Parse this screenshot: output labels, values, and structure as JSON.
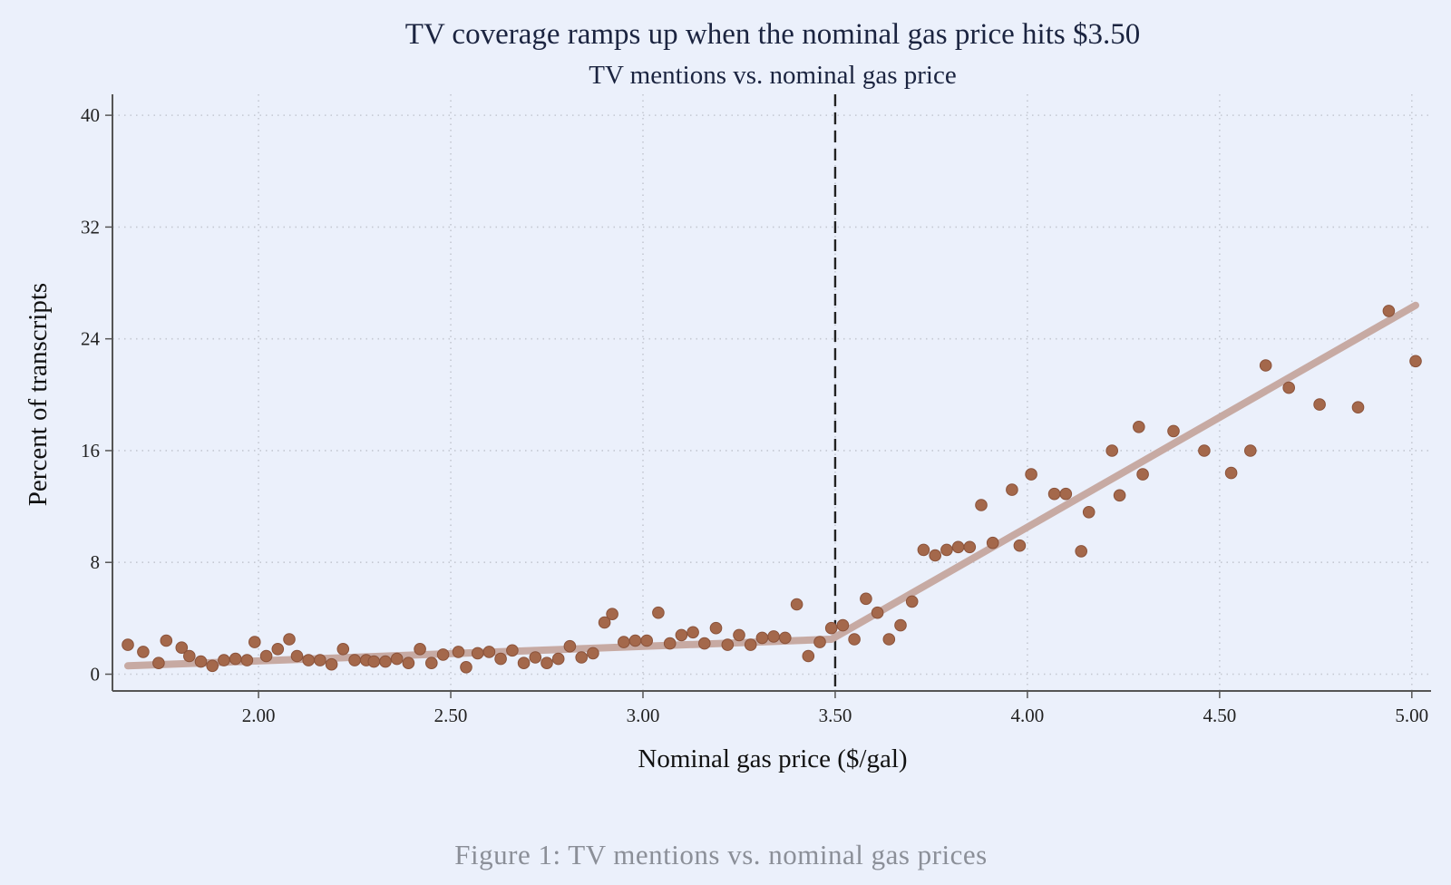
{
  "chart_data": {
    "type": "scatter",
    "title": "TV coverage ramps up when the nominal gas price hits $3.50",
    "subtitle": "TV mentions vs. nominal gas price",
    "xlabel": "Nominal gas price ($/gal)",
    "ylabel": "Percent of transcripts",
    "xlim": [
      1.62,
      5.05
    ],
    "ylim": [
      -1.2,
      41.5
    ],
    "x_ticks": [
      2.0,
      2.5,
      3.0,
      3.5,
      4.0,
      4.5,
      5.0
    ],
    "x_tick_labels": [
      "2.00",
      "2.50",
      "3.00",
      "3.50",
      "4.00",
      "4.50",
      "5.00"
    ],
    "y_ticks": [
      0,
      8,
      16,
      24,
      32,
      40
    ],
    "y_tick_labels": [
      "0",
      "8",
      "16",
      "24",
      "32",
      "40"
    ],
    "grid": true,
    "threshold_x": 3.5,
    "colors": {
      "background": "#ebf0fb",
      "points": "#a4684b",
      "points_edge": "#8a523a",
      "fit_line": "#c7aaa3",
      "threshold_line": "#222222",
      "grid": "#c4c8d2",
      "axis": "#555555"
    },
    "series": [
      {
        "type": "scatter",
        "points": [
          [
            1.66,
            2.1
          ],
          [
            1.7,
            1.6
          ],
          [
            1.74,
            0.8
          ],
          [
            1.76,
            2.4
          ],
          [
            1.8,
            1.9
          ],
          [
            1.82,
            1.3
          ],
          [
            1.85,
            0.9
          ],
          [
            1.88,
            0.6
          ],
          [
            1.91,
            1.0
          ],
          [
            1.94,
            1.1
          ],
          [
            1.97,
            1.0
          ],
          [
            1.99,
            2.3
          ],
          [
            2.02,
            1.3
          ],
          [
            2.05,
            1.8
          ],
          [
            2.08,
            2.5
          ],
          [
            2.1,
            1.3
          ],
          [
            2.13,
            1.0
          ],
          [
            2.16,
            1.0
          ],
          [
            2.19,
            0.7
          ],
          [
            2.22,
            1.8
          ],
          [
            2.25,
            1.0
          ],
          [
            2.28,
            1.0
          ],
          [
            2.3,
            0.9
          ],
          [
            2.33,
            0.9
          ],
          [
            2.36,
            1.1
          ],
          [
            2.39,
            0.8
          ],
          [
            2.42,
            1.8
          ],
          [
            2.45,
            0.8
          ],
          [
            2.48,
            1.4
          ],
          [
            2.52,
            1.6
          ],
          [
            2.54,
            0.5
          ],
          [
            2.57,
            1.5
          ],
          [
            2.6,
            1.6
          ],
          [
            2.63,
            1.1
          ],
          [
            2.66,
            1.7
          ],
          [
            2.69,
            0.8
          ],
          [
            2.72,
            1.2
          ],
          [
            2.75,
            0.8
          ],
          [
            2.78,
            1.1
          ],
          [
            2.81,
            2.0
          ],
          [
            2.84,
            1.2
          ],
          [
            2.87,
            1.5
          ],
          [
            2.9,
            3.7
          ],
          [
            2.92,
            4.3
          ],
          [
            2.95,
            2.3
          ],
          [
            2.98,
            2.4
          ],
          [
            3.01,
            2.4
          ],
          [
            3.04,
            4.4
          ],
          [
            3.07,
            2.2
          ],
          [
            3.1,
            2.8
          ],
          [
            3.13,
            3.0
          ],
          [
            3.16,
            2.2
          ],
          [
            3.19,
            3.3
          ],
          [
            3.22,
            2.1
          ],
          [
            3.25,
            2.8
          ],
          [
            3.28,
            2.1
          ],
          [
            3.31,
            2.6
          ],
          [
            3.34,
            2.7
          ],
          [
            3.37,
            2.6
          ],
          [
            3.4,
            5.0
          ],
          [
            3.43,
            1.3
          ],
          [
            3.46,
            2.3
          ],
          [
            3.49,
            3.3
          ],
          [
            3.52,
            3.5
          ],
          [
            3.55,
            2.5
          ],
          [
            3.58,
            5.4
          ],
          [
            3.61,
            4.4
          ],
          [
            3.64,
            2.5
          ],
          [
            3.67,
            3.5
          ],
          [
            3.7,
            5.2
          ],
          [
            3.73,
            8.9
          ],
          [
            3.76,
            8.5
          ],
          [
            3.79,
            8.9
          ],
          [
            3.82,
            9.1
          ],
          [
            3.85,
            9.1
          ],
          [
            3.88,
            12.1
          ],
          [
            3.91,
            9.4
          ],
          [
            3.96,
            13.2
          ],
          [
            3.98,
            9.2
          ],
          [
            4.01,
            14.3
          ],
          [
            4.07,
            12.9
          ],
          [
            4.1,
            12.9
          ],
          [
            4.14,
            8.8
          ],
          [
            4.16,
            11.6
          ],
          [
            4.22,
            16.0
          ],
          [
            4.24,
            12.8
          ],
          [
            4.29,
            17.7
          ],
          [
            4.3,
            14.3
          ],
          [
            4.38,
            17.4
          ],
          [
            4.46,
            16.0
          ],
          [
            4.53,
            14.4
          ],
          [
            4.58,
            16.0
          ],
          [
            4.62,
            22.1
          ],
          [
            4.68,
            20.5
          ],
          [
            4.76,
            19.3
          ],
          [
            4.86,
            19.1
          ],
          [
            4.94,
            26.0
          ],
          [
            5.01,
            22.4
          ]
        ]
      },
      {
        "type": "line",
        "points": [
          [
            1.66,
            0.6
          ],
          [
            3.49,
            2.5
          ],
          [
            5.01,
            26.4
          ]
        ]
      }
    ]
  },
  "caption": "Figure 1: TV mentions vs. nominal gas prices"
}
